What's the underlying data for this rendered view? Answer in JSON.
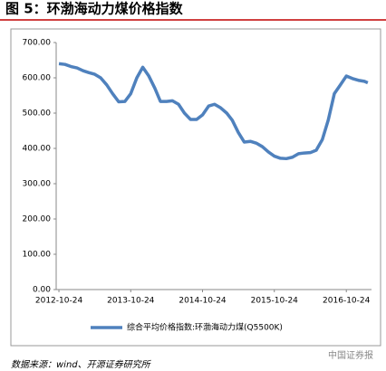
{
  "title": "图 5：环渤海动力煤价格指数",
  "source": "数据来源：wind、开源证券研究所",
  "watermark": "中国证券报",
  "chart_data": {
    "type": "line",
    "x": [
      "2012-10-24",
      "2012-11-24",
      "2012-12-24",
      "2013-01-24",
      "2013-02-24",
      "2013-03-24",
      "2013-04-24",
      "2013-05-24",
      "2013-06-24",
      "2013-07-24",
      "2013-08-24",
      "2013-09-24",
      "2013-10-24",
      "2013-11-24",
      "2013-12-24",
      "2014-01-24",
      "2014-02-24",
      "2014-03-24",
      "2014-04-24",
      "2014-05-24",
      "2014-06-24",
      "2014-07-24",
      "2014-08-24",
      "2014-09-24",
      "2014-10-24",
      "2014-11-24",
      "2014-12-24",
      "2015-01-24",
      "2015-02-24",
      "2015-03-24",
      "2015-04-24",
      "2015-05-24",
      "2015-06-24",
      "2015-07-24",
      "2015-08-24",
      "2015-09-24",
      "2015-10-24",
      "2015-11-24",
      "2015-12-24",
      "2016-01-24",
      "2016-02-24",
      "2016-03-24",
      "2016-04-24",
      "2016-05-24",
      "2016-06-24",
      "2016-07-24",
      "2016-08-24",
      "2016-09-24",
      "2016-10-24",
      "2016-11-24",
      "2016-12-24",
      "2017-01-24",
      "2017-02-10"
    ],
    "series": [
      {
        "name": "综合平均价格指数:环渤海动力煤(Q5500K)",
        "color": "#4f81bd",
        "values": [
          640,
          638,
          632,
          628,
          620,
          615,
          610,
          600,
          580,
          555,
          532,
          533,
          555,
          600,
          630,
          605,
          570,
          533,
          533,
          535,
          525,
          500,
          482,
          482,
          495,
          520,
          525,
          515,
          500,
          480,
          445,
          418,
          420,
          415,
          405,
          390,
          378,
          372,
          371,
          375,
          385,
          387,
          388,
          395,
          425,
          480,
          555,
          580,
          605,
          598,
          593,
          590,
          586
        ]
      }
    ],
    "xlim": [
      "2012-10-10",
      "2017-03-01"
    ],
    "xticks": [
      "2012-10-24",
      "2013-10-24",
      "2014-10-24",
      "2015-10-24",
      "2016-10-24"
    ],
    "ylim": [
      0,
      700
    ],
    "yticks": [
      {
        "value": 0,
        "label": "0.00"
      },
      {
        "value": 100,
        "label": "100.00"
      },
      {
        "value": 200,
        "label": "200.00"
      },
      {
        "value": 300,
        "label": "300.00"
      },
      {
        "value": 400,
        "label": "400.00"
      },
      {
        "value": 500,
        "label": "500.00"
      },
      {
        "value": 600,
        "label": "600.00"
      },
      {
        "value": 700,
        "label": "700.00"
      }
    ],
    "grid": false,
    "legend": "bottom"
  }
}
